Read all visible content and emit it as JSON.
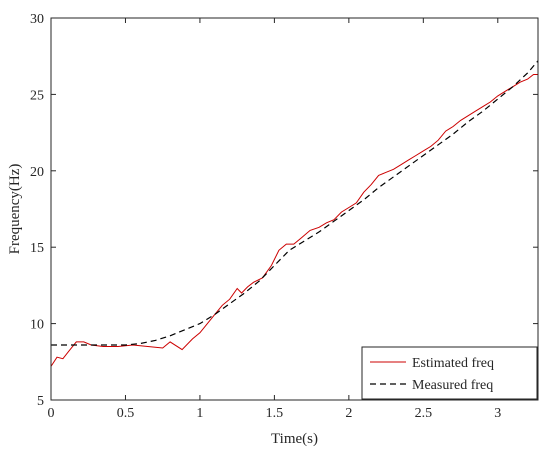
{
  "chart_data": {
    "type": "line",
    "title": "",
    "xlabel": "Time(s)",
    "ylabel": "Frequency(Hz)",
    "xlim": [
      0,
      3.27
    ],
    "ylim": [
      5,
      30
    ],
    "xticks": [
      0,
      0.5,
      1,
      1.5,
      2,
      2.5,
      3
    ],
    "xtick_labels": [
      "0",
      "0.5",
      "1",
      "1.5",
      "2",
      "2.5",
      "3"
    ],
    "yticks": [
      5,
      10,
      15,
      20,
      25,
      30
    ],
    "ytick_labels": [
      "5",
      "10",
      "15",
      "20",
      "25",
      "30"
    ],
    "grid": false,
    "box": true,
    "legend_position": "bottom-right",
    "series": [
      {
        "name": "Estimated freq",
        "color": "#cc0000",
        "style": "solid",
        "x": [
          0,
          0.04,
          0.08,
          0.12,
          0.17,
          0.22,
          0.27,
          0.35,
          0.45,
          0.55,
          0.65,
          0.75,
          0.8,
          0.88,
          0.95,
          1.0,
          1.05,
          1.1,
          1.15,
          1.2,
          1.25,
          1.28,
          1.32,
          1.36,
          1.42,
          1.48,
          1.53,
          1.58,
          1.63,
          1.68,
          1.74,
          1.8,
          1.85,
          1.9,
          1.95,
          2.0,
          2.05,
          2.1,
          2.15,
          2.2,
          2.25,
          2.3,
          2.35,
          2.4,
          2.45,
          2.5,
          2.55,
          2.6,
          2.65,
          2.7,
          2.75,
          2.8,
          2.85,
          2.9,
          2.95,
          3.0,
          3.05,
          3.1,
          3.15,
          3.2,
          3.24,
          3.27
        ],
        "y": [
          7.2,
          7.8,
          7.7,
          8.2,
          8.8,
          8.8,
          8.6,
          8.5,
          8.5,
          8.6,
          8.5,
          8.4,
          8.8,
          8.3,
          9.0,
          9.4,
          10.0,
          10.6,
          11.2,
          11.6,
          12.3,
          12.0,
          12.4,
          12.7,
          13.0,
          13.8,
          14.8,
          15.2,
          15.2,
          15.6,
          16.1,
          16.3,
          16.6,
          16.8,
          17.3,
          17.6,
          17.9,
          18.6,
          19.1,
          19.7,
          19.9,
          20.1,
          20.4,
          20.7,
          21.0,
          21.3,
          21.6,
          22.0,
          22.6,
          22.9,
          23.3,
          23.6,
          23.9,
          24.2,
          24.5,
          24.9,
          25.2,
          25.5,
          25.8,
          26.0,
          26.3,
          26.3
        ]
      },
      {
        "name": "Measured freq",
        "color": "#000000",
        "style": "dashed",
        "x": [
          0,
          0.2,
          0.4,
          0.5,
          0.6,
          0.7,
          0.8,
          0.9,
          1.0,
          1.1,
          1.2,
          1.3,
          1.4,
          1.5,
          1.6,
          1.7,
          1.8,
          1.9,
          2.0,
          2.1,
          2.2,
          2.3,
          2.4,
          2.5,
          2.6,
          2.7,
          2.8,
          2.9,
          3.0,
          3.1,
          3.2,
          3.27
        ],
        "y": [
          8.6,
          8.6,
          8.6,
          8.6,
          8.7,
          8.9,
          9.2,
          9.6,
          10.0,
          10.6,
          11.3,
          12.0,
          12.8,
          13.8,
          14.8,
          15.4,
          16.0,
          16.7,
          17.4,
          18.1,
          18.9,
          19.6,
          20.3,
          21.0,
          21.7,
          22.4,
          23.2,
          23.9,
          24.7,
          25.5,
          26.4,
          27.2
        ]
      }
    ]
  }
}
